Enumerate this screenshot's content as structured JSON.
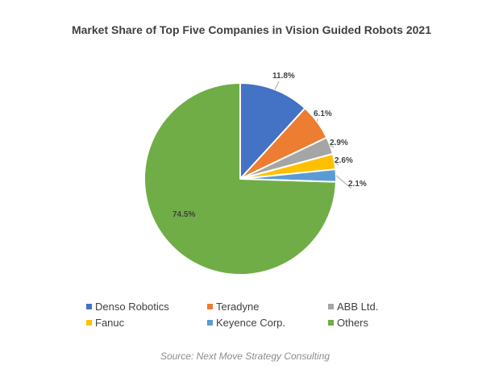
{
  "chart_data": {
    "type": "pie",
    "title": "Market Share of Top Five Companies in Vision Guided Robots 2021",
    "slices": [
      {
        "label": "Denso Robotics",
        "value": 11.8,
        "display": "11.8%",
        "color": "#4472C4"
      },
      {
        "label": "Teradyne",
        "value": 6.1,
        "display": "6.1%",
        "color": "#ED7D31"
      },
      {
        "label": "ABB Ltd.",
        "value": 2.9,
        "display": "2.9%",
        "color": "#A5A5A5"
      },
      {
        "label": "Fanuc",
        "value": 2.6,
        "display": "2.6%",
        "color": "#FFC000"
      },
      {
        "label": "Keyence Corp.",
        "value": 2.1,
        "display": "2.1%",
        "color": "#5B9BD5"
      },
      {
        "label": "Others",
        "value": 74.5,
        "display": "74.5%",
        "color": "#70AD47"
      }
    ],
    "legend_position": "bottom",
    "source": "Source: Next Move Strategy Consulting"
  }
}
